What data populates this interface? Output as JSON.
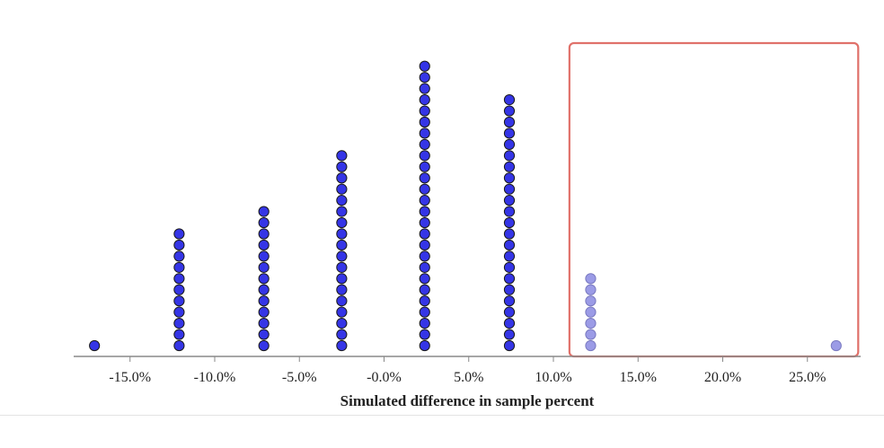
{
  "chart_data": {
    "type": "dotplot",
    "xlabel": "Simulated difference in sample percent",
    "xlim": [
      -18.5,
      28.0
    ],
    "xticks": [
      {
        "value": -15,
        "label": "-15.0%"
      },
      {
        "value": -10,
        "label": "-10.0%"
      },
      {
        "value": -5,
        "label": "-5.0%"
      },
      {
        "value": 0,
        "label": "-0.0%"
      },
      {
        "value": 5,
        "label": "5.0%"
      },
      {
        "value": 10,
        "label": "10.0%"
      },
      {
        "value": 15,
        "label": "15.0%"
      },
      {
        "value": 20,
        "label": "20.0%"
      },
      {
        "value": 25,
        "label": "25.0%"
      }
    ],
    "bins": [
      {
        "x": -17.1,
        "count": 1,
        "highlighted": false
      },
      {
        "x": -12.1,
        "count": 11,
        "highlighted": false
      },
      {
        "x": -7.1,
        "count": 13,
        "highlighted": false
      },
      {
        "x": -2.5,
        "count": 18,
        "highlighted": false
      },
      {
        "x": 2.4,
        "count": 26,
        "highlighted": false
      },
      {
        "x": 7.4,
        "count": 23,
        "highlighted": false
      },
      {
        "x": 12.2,
        "count": 7,
        "highlighted": true
      },
      {
        "x": 26.7,
        "count": 1,
        "highlighted": true
      }
    ],
    "highlight_region": {
      "from": 11.0,
      "to": 28.0
    },
    "colors": {
      "dot": "#3535e6",
      "dot_stroke": "#1a1a1a",
      "dot_highlight": "#9b9be6",
      "dot_highlight_stroke": "#7a7ac0",
      "box": "#e0716a",
      "axis": "#888888",
      "text": "#222222"
    }
  }
}
